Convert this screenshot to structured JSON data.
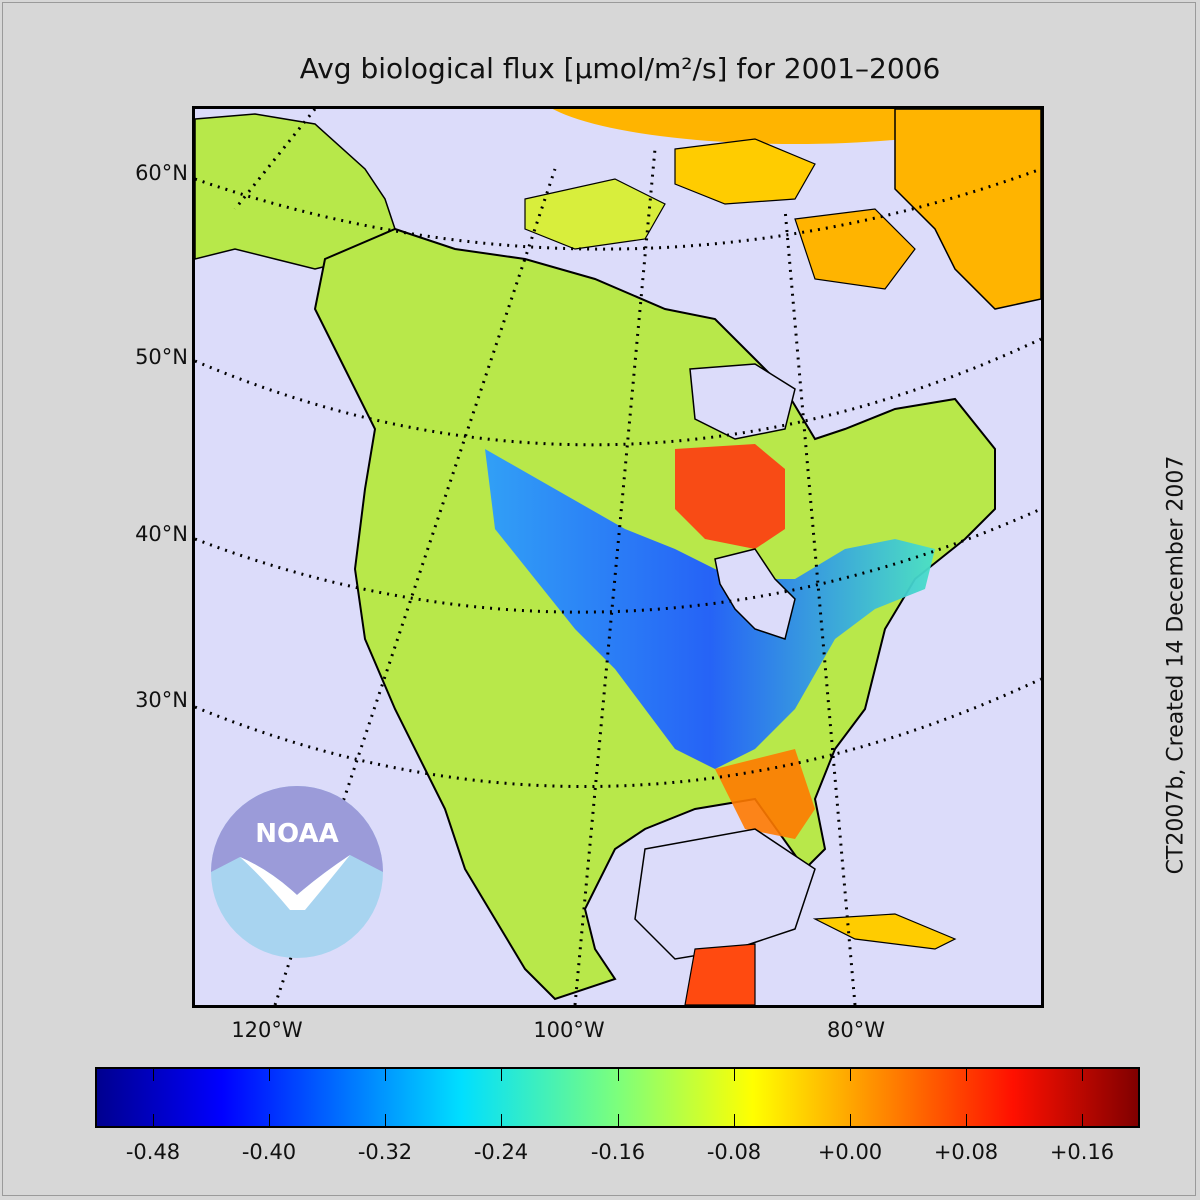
{
  "title": "Avg biological flux [μmol/m²/s] for 2001–2006",
  "side_note": "CT2007b, Created 14 December 2007",
  "logo_text": "NOAA",
  "lat_labels": [
    "60°N",
    "50°N",
    "40°N",
    "30°N"
  ],
  "lon_labels": [
    "120°W",
    "100°W",
    "80°W"
  ],
  "colorbar": {
    "ticks": [
      "-0.48",
      "-0.40",
      "-0.32",
      "-0.24",
      "-0.16",
      "-0.08",
      "+0.00",
      "+0.08",
      "+0.16"
    ],
    "min": -0.52,
    "max": 0.2,
    "colormap": "jet"
  },
  "colors": {
    "ocean": "#dcdcfa",
    "background": "#d7d7d7",
    "ice_cap": "#ffb400",
    "logo_top": "#9b9bd9",
    "logo_bottom": "#a8d4f0"
  }
}
